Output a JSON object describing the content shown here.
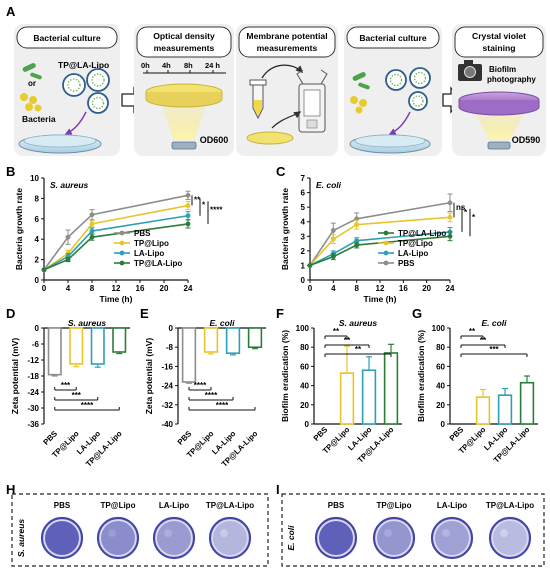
{
  "colors": {
    "PBS": "#8d8d8d",
    "TP@Lipo": "#e8c42c",
    "LA-Lipo": "#2e9fb6",
    "TP@LA-Lipo": "#2b7d3a",
    "crystal_violet": "#5556b4",
    "workflow_bg": "#eeeeee"
  },
  "panels": {
    "A": "A",
    "B": "B",
    "C": "C",
    "D": "D",
    "E": "E",
    "F": "F",
    "G": "G",
    "H": "H",
    "I": "I"
  },
  "workflow": {
    "step1_title": "Bacterial culture",
    "step1_agent": "TP@LA-Lipo",
    "step1_or": "or",
    "step1_bacteria": "Bacteria",
    "step2_title_line1": "Optical density",
    "step2_title_line2": "measurements",
    "step2_times": [
      "0h",
      "4h",
      "8h",
      "24 h"
    ],
    "step2_readout": "OD600",
    "step3_title_line1": "Membrane potential",
    "step3_title_line2": "measurements",
    "step4_title": "Bacterial culture",
    "step5_title_line1": "Crystal violet",
    "step5_title_line2": "staining",
    "step5_photo_line1": "Biofilm",
    "step5_photo_line2": "photography",
    "step5_readout": "OD590"
  },
  "groups": [
    "PBS",
    "TP@Lipo",
    "LA-Lipo",
    "TP@LA-Lipo"
  ],
  "chart_data": [
    {
      "id": "B",
      "type": "line",
      "title": "S. aureus",
      "xlabel": "Time (h)",
      "ylabel": "Bacteria growth rate",
      "x": [
        0,
        4,
        8,
        24
      ],
      "xlim": [
        0,
        24
      ],
      "ylim": [
        0,
        10
      ],
      "xticks": [
        "0",
        "4",
        "8",
        "12",
        "16",
        "20",
        "24"
      ],
      "yticks": [
        "0",
        "2",
        "4",
        "6",
        "8",
        "10"
      ],
      "series": [
        {
          "name": "PBS",
          "values": [
            1,
            4.2,
            6.4,
            8.3
          ],
          "errors": [
            0,
            0.7,
            0.5,
            0.4
          ]
        },
        {
          "name": "TP@Lipo",
          "values": [
            1,
            2.6,
            5.5,
            7.3
          ],
          "errors": [
            0,
            0.3,
            0.3,
            0.4
          ]
        },
        {
          "name": "LA-Lipo",
          "values": [
            1,
            2.3,
            4.8,
            6.3
          ],
          "errors": [
            0,
            0.3,
            0.3,
            0.4
          ]
        },
        {
          "name": "TP@LA-Lipo",
          "values": [
            1,
            2.0,
            4.2,
            5.5
          ],
          "errors": [
            0,
            0.2,
            0.3,
            0.4
          ]
        }
      ],
      "legend_order": [
        "PBS",
        "TP@Lipo",
        "LA-Lipo",
        "TP@LA-Lipo"
      ],
      "legend_position": "bottom-right",
      "significance": [
        "**",
        "*",
        "****"
      ]
    },
    {
      "id": "C",
      "type": "line",
      "title": "E. coli",
      "xlabel": "Time (h)",
      "ylabel": "Bacteria growth rate",
      "x": [
        0,
        4,
        8,
        24
      ],
      "xlim": [
        0,
        24
      ],
      "ylim": [
        0,
        7
      ],
      "xticks": [
        "0",
        "4",
        "8",
        "12",
        "16",
        "20",
        "24"
      ],
      "yticks": [
        "0",
        "1",
        "2",
        "3",
        "4",
        "5",
        "6",
        "7"
      ],
      "series": [
        {
          "name": "PBS",
          "values": [
            1,
            3.4,
            4.2,
            5.3
          ],
          "errors": [
            0,
            0.5,
            0.4,
            0.6
          ]
        },
        {
          "name": "TP@Lipo",
          "values": [
            1,
            2.8,
            3.8,
            4.3
          ],
          "errors": [
            0,
            0.3,
            0.3,
            0.3
          ]
        },
        {
          "name": "LA-Lipo",
          "values": [
            1,
            1.8,
            2.7,
            3.3
          ],
          "errors": [
            0,
            0.2,
            0.2,
            0.3
          ]
        },
        {
          "name": "TP@LA-Lipo",
          "values": [
            1,
            1.6,
            2.4,
            3.0
          ],
          "errors": [
            0,
            0.2,
            0.2,
            0.3
          ]
        }
      ],
      "legend_order": [
        "TP@LA-Lipo",
        "TP@Lipo",
        "LA-Lipo",
        "PBS"
      ],
      "legend_position": "bottom-right",
      "significance": [
        "ns",
        "*",
        "*"
      ]
    },
    {
      "id": "D",
      "type": "bar",
      "title": "S. aureus",
      "ylabel": "Zeta potential (mV)",
      "categories": [
        "PBS",
        "TP@Lipo",
        "LA-Lipo",
        "TP@LA-Lipo"
      ],
      "values": [
        -17.5,
        -13.5,
        -13.5,
        -9.0
      ],
      "errors": [
        0.5,
        1.0,
        1.2,
        0.6
      ],
      "ylim": [
        -36,
        0
      ],
      "yticks": [
        "0",
        "-6",
        "-12",
        "-18",
        "-24",
        "-30",
        "-36"
      ],
      "significance": [
        "***",
        "***",
        "****"
      ]
    },
    {
      "id": "E",
      "type": "bar",
      "title": "E. coli",
      "ylabel": "Zeta potential (mV)",
      "categories": [
        "PBS",
        "TP@Lipo",
        "LA-Lipo",
        "TP@LA-Lipo"
      ],
      "values": [
        -22.5,
        -10.0,
        -10.5,
        -8.0
      ],
      "errors": [
        0.5,
        0.8,
        0.7,
        0.6
      ],
      "ylim": [
        -40,
        0
      ],
      "yticks": [
        "0",
        "-8",
        "-16",
        "-24",
        "-32",
        "-40"
      ],
      "significance": [
        "****",
        "****",
        "****"
      ]
    },
    {
      "id": "F",
      "type": "bar",
      "title": "S. aureus",
      "ylabel": "Biofilm eradication (%)",
      "categories": [
        "PBS",
        "TP@Lipo",
        "LA-Lipo",
        "TP@LA-Lipo"
      ],
      "values": [
        0,
        53,
        56,
        74
      ],
      "errors": [
        0,
        28,
        14,
        9
      ],
      "ylim": [
        0,
        100
      ],
      "yticks": [
        "0",
        "20",
        "40",
        "60",
        "80",
        "100"
      ],
      "significance": [
        "**",
        "**",
        "**"
      ]
    },
    {
      "id": "G",
      "type": "bar",
      "title": "E. coli",
      "ylabel": "Biofilm eradication (%)",
      "categories": [
        "PBS",
        "TP@Lipo",
        "LA-Lipo",
        "TP@LA-Lipo"
      ],
      "values": [
        0,
        28,
        30,
        43
      ],
      "errors": [
        0,
        8,
        7,
        7
      ],
      "ylim": [
        0,
        100
      ],
      "yticks": [
        "0",
        "20",
        "40",
        "60",
        "80",
        "100"
      ],
      "significance": [
        "**",
        "**",
        "***"
      ]
    }
  ],
  "biofilm_photos": [
    {
      "id": "H",
      "strain": "S. aureus",
      "labels": [
        "PBS",
        "TP@Lipo",
        "LA-Lipo",
        "TP@LA-Lipo"
      ],
      "stain_intensity": [
        1.0,
        0.6,
        0.45,
        0.2
      ]
    },
    {
      "id": "I",
      "strain": "E. coli",
      "labels": [
        "PBS",
        "TP@Lipo",
        "LA-Lipo",
        "TP@LA-Lipo"
      ],
      "stain_intensity": [
        1.0,
        0.5,
        0.4,
        0.15
      ]
    }
  ]
}
